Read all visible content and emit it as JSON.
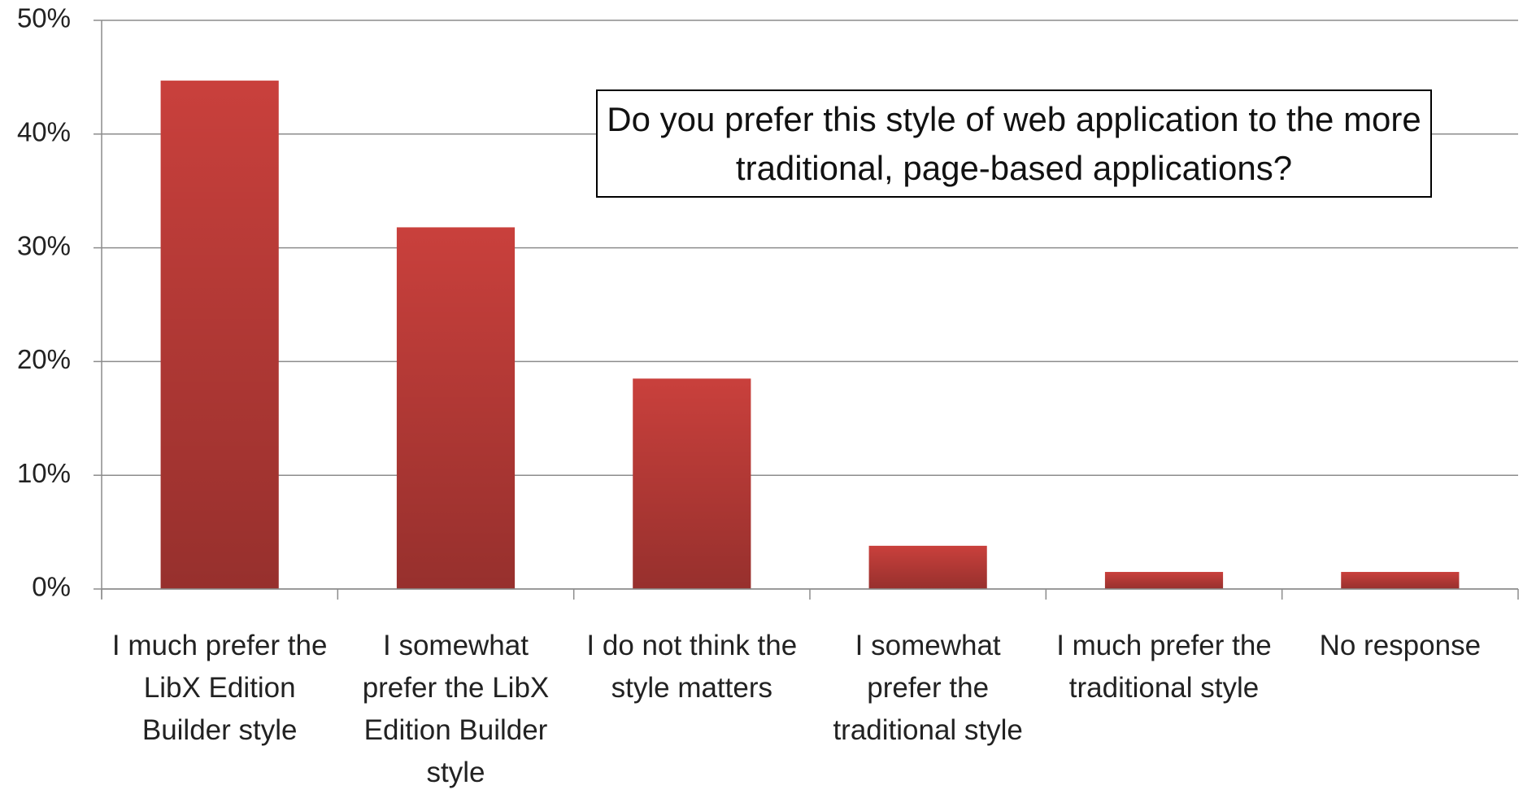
{
  "chart_data": {
    "type": "bar",
    "title": "Do you prefer this style of web application to the more traditional, page-based applications?",
    "categories": [
      "I much prefer the LibX Edition Builder style",
      "I somewhat prefer the LibX Edition Builder style",
      "I do not think the style matters",
      "I somewhat prefer the traditional style",
      "I much prefer the traditional style",
      "No response"
    ],
    "values": [
      44.7,
      31.8,
      18.5,
      3.8,
      1.5,
      1.5
    ],
    "color": "#c9403c",
    "ylim": [
      0,
      50
    ],
    "yticks": [
      {
        "value": 0,
        "label": "0%"
      },
      {
        "value": 10,
        "label": "10%"
      },
      {
        "value": 20,
        "label": "20%"
      },
      {
        "value": 30,
        "label": "30%"
      },
      {
        "value": 40,
        "label": "40%"
      },
      {
        "value": 50,
        "label": "50%"
      }
    ],
    "grid": true
  }
}
